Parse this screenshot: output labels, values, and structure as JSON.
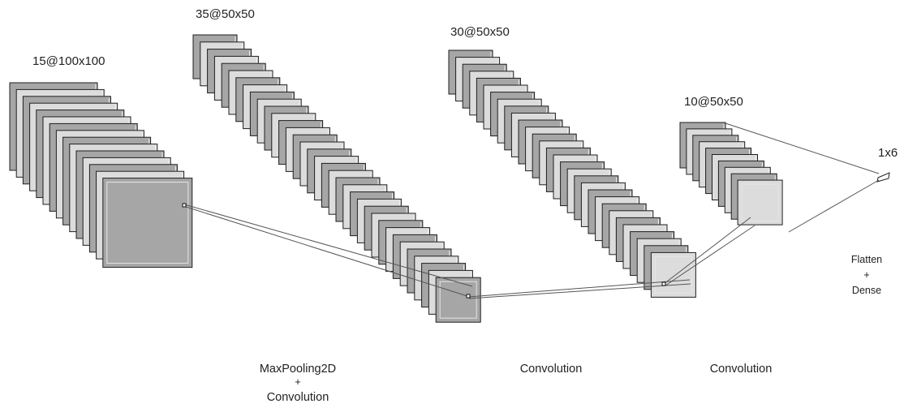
{
  "layers": [
    {
      "label": "15@100x100",
      "maps": 15
    },
    {
      "label": "35@50x50",
      "maps": 35
    },
    {
      "label": "30@50x50",
      "maps": 30
    },
    {
      "label": "10@50x50",
      "maps": 10
    },
    {
      "label": "1x6"
    }
  ],
  "operations": [
    {
      "lines": [
        "MaxPooling2D",
        "+",
        "Convolution"
      ]
    },
    {
      "lines": [
        "Convolution"
      ]
    },
    {
      "lines": [
        "Convolution"
      ]
    },
    {
      "lines": [
        "Flatten",
        "+",
        "Dense"
      ]
    }
  ],
  "colors": {
    "map_dark": "#a6a6a6",
    "map_light": "#dcdcdc",
    "map_stroke": "#1f1f1f",
    "inner_square": "#bdbdbd",
    "connector": "#555555",
    "text": "#222222"
  }
}
